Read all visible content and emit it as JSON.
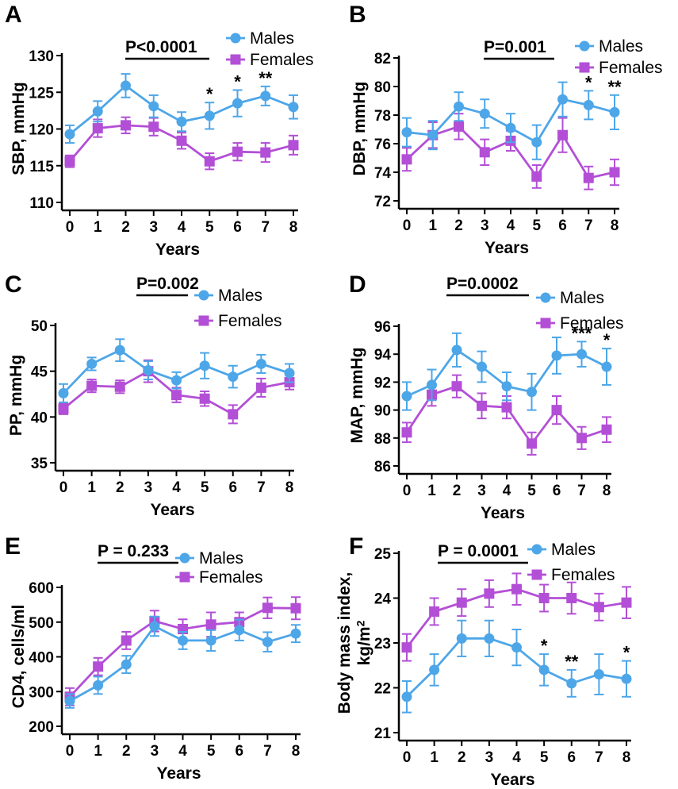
{
  "colors": {
    "males": "#4da6e8",
    "females": "#b34fd6",
    "axis": "#000000"
  },
  "chart_data": [
    {
      "panel": "A",
      "type": "line",
      "pvalue": "P<0.0001",
      "xlabel": "Years",
      "ylabel": "SBP, mmHg",
      "x": [
        0,
        1,
        2,
        3,
        4,
        5,
        6,
        7,
        8
      ],
      "ylim": [
        110,
        130
      ],
      "yticks": [
        110,
        115,
        120,
        125,
        130
      ],
      "series": [
        {
          "name": "Males",
          "marker": "circle",
          "values": [
            119.3,
            122.4,
            125.9,
            123.1,
            121.0,
            121.8,
            123.5,
            124.5,
            123.0
          ],
          "err": [
            1.2,
            1.4,
            1.6,
            1.5,
            1.3,
            1.8,
            1.8,
            1.3,
            1.6
          ]
        },
        {
          "name": "Females",
          "marker": "square",
          "values": [
            115.6,
            120.1,
            120.5,
            120.3,
            118.4,
            115.6,
            116.9,
            116.8,
            117.8
          ],
          "err": [
            0.8,
            1.2,
            1.1,
            1.2,
            1.1,
            1.1,
            1.2,
            1.3,
            1.3
          ]
        }
      ],
      "annotations": [
        {
          "x": 5,
          "text": "*"
        },
        {
          "x": 6,
          "text": "*"
        },
        {
          "x": 7,
          "text": "**"
        }
      ]
    },
    {
      "panel": "B",
      "type": "line",
      "pvalue": "P=0.001",
      "xlabel": "Years",
      "ylabel": "DBP, mmHg",
      "x": [
        0,
        1,
        2,
        3,
        4,
        5,
        6,
        7,
        8
      ],
      "ylim": [
        72,
        82
      ],
      "yticks": [
        72,
        74,
        76,
        78,
        80,
        82
      ],
      "series": [
        {
          "name": "Males",
          "marker": "circle",
          "values": [
            76.8,
            76.6,
            78.6,
            78.1,
            77.1,
            76.1,
            79.1,
            78.7,
            78.2
          ],
          "err": [
            1.0,
            1.0,
            1.0,
            1.0,
            1.0,
            1.2,
            1.2,
            1.0,
            1.2
          ]
        },
        {
          "name": "Females",
          "marker": "square",
          "values": [
            74.9,
            76.6,
            77.2,
            75.4,
            76.2,
            73.7,
            76.6,
            73.6,
            74.0
          ],
          "err": [
            0.8,
            0.9,
            0.9,
            0.9,
            0.7,
            0.8,
            1.2,
            0.8,
            0.9
          ]
        }
      ],
      "annotations": [
        {
          "x": 7,
          "text": "*"
        },
        {
          "x": 8,
          "text": "**"
        }
      ]
    },
    {
      "panel": "C",
      "type": "line",
      "pvalue": "P=0.002",
      "xlabel": "Years",
      "ylabel": "PP, mmHg",
      "x": [
        0,
        1,
        2,
        3,
        4,
        5,
        6,
        7,
        8
      ],
      "ylim": [
        35,
        50
      ],
      "yticks": [
        35,
        40,
        45,
        50
      ],
      "series": [
        {
          "name": "Males",
          "marker": "circle",
          "values": [
            42.6,
            45.8,
            47.3,
            45.1,
            44.0,
            45.6,
            44.4,
            45.8,
            44.8
          ],
          "err": [
            1.0,
            0.7,
            1.2,
            1.0,
            0.9,
            1.4,
            1.2,
            1.0,
            1.0
          ]
        },
        {
          "name": "Females",
          "marker": "square",
          "values": [
            40.9,
            43.4,
            43.3,
            45.0,
            42.4,
            42.0,
            40.3,
            43.2,
            43.8
          ],
          "err": [
            0.6,
            0.7,
            0.7,
            1.2,
            0.8,
            0.8,
            1.0,
            1.0,
            0.8
          ]
        }
      ],
      "annotations": []
    },
    {
      "panel": "D",
      "type": "line",
      "pvalue": "P=0.0002",
      "xlabel": "Years",
      "ylabel": "MAP, mmHg",
      "x": [
        0,
        1,
        2,
        3,
        4,
        5,
        6,
        7,
        8
      ],
      "ylim": [
        86,
        96
      ],
      "yticks": [
        86,
        88,
        90,
        92,
        94,
        96
      ],
      "series": [
        {
          "name": "Males",
          "marker": "circle",
          "values": [
            91.0,
            91.8,
            94.3,
            93.1,
            91.7,
            91.3,
            93.9,
            94.0,
            93.1
          ],
          "err": [
            1.0,
            1.1,
            1.2,
            1.1,
            1.0,
            1.3,
            1.3,
            0.9,
            1.3
          ]
        },
        {
          "name": "Females",
          "marker": "square",
          "values": [
            88.4,
            91.1,
            91.7,
            90.3,
            90.2,
            87.6,
            90.0,
            88.0,
            88.6
          ],
          "err": [
            0.7,
            0.8,
            0.8,
            0.9,
            0.8,
            0.8,
            1.0,
            0.8,
            0.9
          ]
        }
      ],
      "annotations": [
        {
          "x": 7,
          "text": "***"
        },
        {
          "x": 8,
          "text": "*"
        }
      ]
    },
    {
      "panel": "E",
      "type": "line",
      "pvalue": "P = 0.233",
      "xlabel": "Years",
      "ylabel": "CD4, cells/ml",
      "x": [
        0,
        1,
        2,
        3,
        4,
        5,
        6,
        7,
        8
      ],
      "ylim": [
        200,
        600
      ],
      "yticks": [
        200,
        300,
        400,
        500,
        600
      ],
      "series": [
        {
          "name": "Males",
          "marker": "circle",
          "values": [
            273,
            318,
            378,
            488,
            447,
            447,
            477,
            443,
            467
          ],
          "err": [
            20,
            25,
            25,
            28,
            25,
            30,
            30,
            28,
            25
          ]
        },
        {
          "name": "Females",
          "marker": "square",
          "values": [
            285,
            372,
            447,
            503,
            480,
            493,
            500,
            541,
            540
          ],
          "err": [
            25,
            25,
            25,
            30,
            28,
            35,
            28,
            30,
            32
          ]
        }
      ],
      "annotations": []
    },
    {
      "panel": "F",
      "type": "line",
      "pvalue": "P = 0.0001",
      "xlabel": "Years",
      "ylabel": "Body mass index, kg/m2",
      "ylabel_main": "Body mass index,",
      "ylabel_unit": "kg/m",
      "ylabel_sup": "2",
      "x": [
        0,
        1,
        2,
        3,
        4,
        5,
        6,
        7,
        8
      ],
      "ylim": [
        21,
        25
      ],
      "yticks": [
        21,
        22,
        23,
        24,
        25
      ],
      "series": [
        {
          "name": "Males",
          "marker": "circle",
          "values": [
            21.8,
            22.4,
            23.1,
            23.1,
            22.9,
            22.4,
            22.1,
            22.3,
            22.2
          ],
          "err": [
            0.35,
            0.35,
            0.4,
            0.4,
            0.4,
            0.35,
            0.3,
            0.45,
            0.4
          ]
        },
        {
          "name": "Females",
          "marker": "square",
          "values": [
            22.9,
            23.7,
            23.9,
            24.1,
            24.2,
            24.0,
            24.0,
            23.8,
            23.9
          ],
          "err": [
            0.3,
            0.3,
            0.3,
            0.3,
            0.35,
            0.3,
            0.35,
            0.3,
            0.35
          ]
        }
      ],
      "annotations": [
        {
          "x": 5,
          "text": "*"
        },
        {
          "x": 6,
          "text": "**"
        },
        {
          "x": 8,
          "text": "*"
        }
      ]
    }
  ]
}
